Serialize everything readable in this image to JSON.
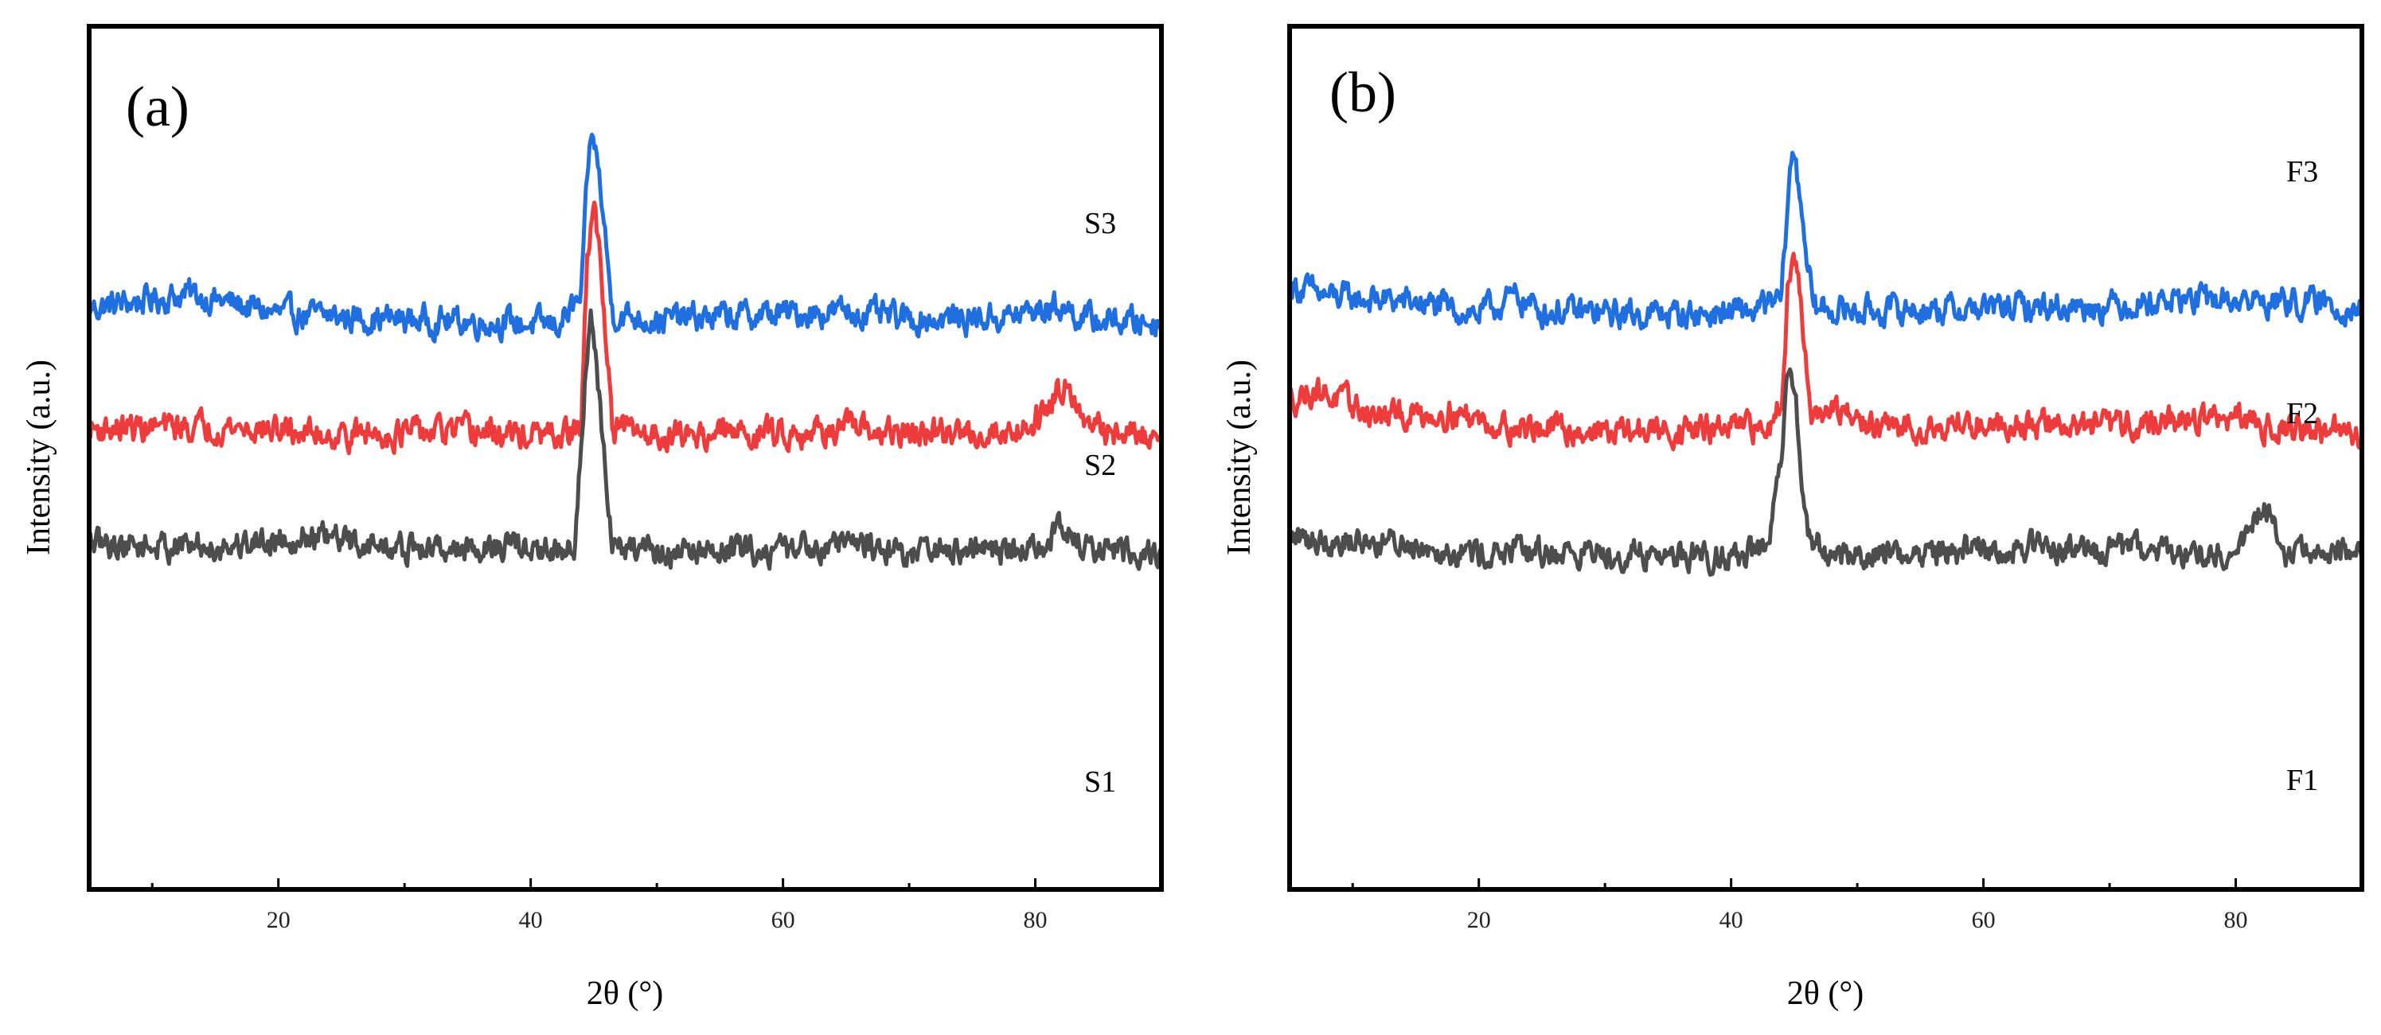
{
  "chart_data": [
    {
      "type": "line",
      "panel_label": "(a)",
      "xlabel": "2θ (°)",
      "ylabel": "Intensity (a.u.)",
      "xlim": [
        5,
        90
      ],
      "xticks": [
        20,
        40,
        60,
        80
      ],
      "yticks": [],
      "grid": false,
      "series": [
        {
          "name": "S3",
          "color": "#1f6fe0",
          "baseline": 198,
          "noise": 4,
          "x": [
            5,
            13,
            20,
            30,
            38,
            42,
            44,
            44.6,
            45,
            45.5,
            46.5,
            50,
            60,
            65,
            70,
            78,
            82,
            84,
            90
          ],
          "values": [
            202,
            207,
            200,
            198,
            197,
            196,
            205,
            255,
            262,
            245,
            200,
            198,
            200,
            201,
            198,
            199,
            203,
            198,
            197
          ]
        },
        {
          "name": "S2",
          "color": "#ee3b3b",
          "baseline": 158,
          "noise": 4,
          "x": [
            5,
            15,
            25,
            35,
            42,
            44,
            44.5,
            45,
            45.6,
            46.5,
            50,
            60,
            65,
            70,
            78,
            80,
            82,
            82.6,
            84,
            90
          ],
          "values": [
            160,
            161,
            158,
            159,
            157,
            160,
            220,
            238,
            215,
            160,
            158,
            159,
            160,
            158,
            159,
            163,
            175,
            178,
            160,
            157
          ]
        },
        {
          "name": "S1",
          "color": "#4d4d4d",
          "baseline": 118,
          "noise": 4,
          "x": [
            5,
            15,
            22,
            30,
            38,
            42,
            43.5,
            44.3,
            44.8,
            45.4,
            46.5,
            50,
            60,
            65,
            70,
            80,
            82,
            84,
            90
          ],
          "values": [
            120,
            119,
            123,
            118,
            119,
            117,
            120,
            175,
            198,
            172,
            118,
            117,
            118,
            121,
            117,
            118,
            125,
            118,
            117
          ]
        }
      ],
      "series_labels": [
        "S3",
        "S2",
        "S1"
      ]
    },
    {
      "type": "line",
      "panel_label": "(b)",
      "xlabel": "2θ (°)",
      "ylabel": "Intensity (a.u.)",
      "xlim": [
        5,
        90
      ],
      "xticks": [
        20,
        40,
        60,
        80
      ],
      "yticks": [],
      "grid": false,
      "series": [
        {
          "name": "F3",
          "color": "#1f6fe0",
          "baseline": 202,
          "noise": 4,
          "x": [
            5,
            8,
            15,
            20,
            23,
            25,
            30,
            38,
            42,
            44,
            44.6,
            45,
            45.5,
            46.5,
            50,
            60,
            70,
            75,
            85,
            90
          ],
          "values": [
            210,
            206,
            204,
            200,
            206,
            201,
            200,
            200,
            201,
            205,
            248,
            256,
            240,
            202,
            201,
            202,
            203,
            205,
            204,
            202
          ]
        },
        {
          "name": "F2",
          "color": "#ee3b3b",
          "baseline": 158,
          "noise": 4,
          "x": [
            5,
            7,
            12,
            18,
            22,
            30,
            40,
            43,
            44,
            44.5,
            45,
            45.6,
            46.5,
            48,
            52,
            60,
            70,
            78,
            85,
            90
          ],
          "values": [
            170,
            174,
            164,
            166,
            161,
            159,
            160,
            160,
            172,
            210,
            222,
            200,
            163,
            166,
            160,
            162,
            161,
            164,
            160,
            158
          ]
        },
        {
          "name": "F1",
          "color": "#4d4d4d",
          "baseline": 115,
          "noise": 4,
          "x": [
            5,
            10,
            15,
            20,
            30,
            40,
            43,
            44,
            44.6,
            45.2,
            46,
            47.5,
            55,
            65,
            75,
            80,
            82.3,
            84,
            90
          ],
          "values": [
            122,
            121,
            120,
            117,
            117,
            116,
            118,
            150,
            182,
            165,
            125,
            116,
            117,
            119,
            117,
            117,
            132,
            117,
            116
          ]
        }
      ],
      "series_labels": [
        "F3",
        "F2",
        "F1"
      ]
    }
  ]
}
